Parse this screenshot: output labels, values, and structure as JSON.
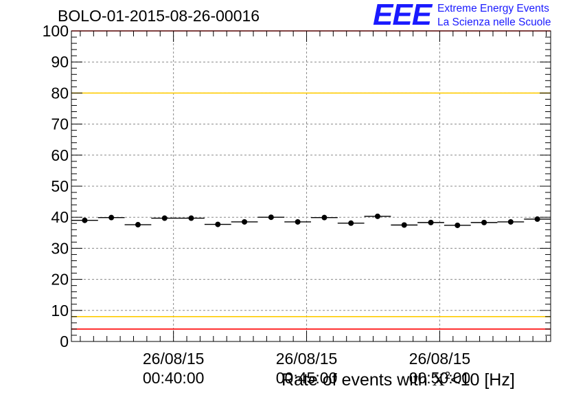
{
  "header": {
    "run_title": "BOLO-01-2015-08-26-00016",
    "logo_mark": "EEE",
    "logo_line1": "Extreme Energy Events",
    "logo_line2": "La Scienza nelle Scuole"
  },
  "chart_data": {
    "type": "scatter",
    "title": "BOLO-01-2015-08-26-00016",
    "xlabel_prefix": "Rate of events with ",
    "xlabel_symbol": "X",
    "xlabel_sup": "2",
    "xlabel_suffix": "<10 [Hz]",
    "ylabel": "",
    "x_axis_kind": "time",
    "x_range": [
      "2015-08-26 00:36:10",
      "2015-08-26 00:54:10"
    ],
    "ylim": [
      0,
      100
    ],
    "yticks": [
      0,
      10,
      20,
      30,
      40,
      50,
      60,
      70,
      80,
      90,
      100
    ],
    "xticks": [
      {
        "time": "2015-08-26 00:40:00",
        "date_label": "26/08/15",
        "time_label": "00:40:00"
      },
      {
        "time": "2015-08-26 00:45:00",
        "date_label": "26/08/15",
        "time_label": "00:45:00"
      },
      {
        "time": "2015-08-26 00:50:00",
        "date_label": "26/08/15",
        "time_label": "00:50:00"
      }
    ],
    "grid": true,
    "bin_width_seconds": 60,
    "series": [
      {
        "marker": "circle",
        "color": "#000000",
        "points": [
          {
            "x": "2015-08-26 00:36:40",
            "y": 39.0
          },
          {
            "x": "2015-08-26 00:37:40",
            "y": 39.9
          },
          {
            "x": "2015-08-26 00:38:40",
            "y": 37.6
          },
          {
            "x": "2015-08-26 00:39:40",
            "y": 39.7
          },
          {
            "x": "2015-08-26 00:40:40",
            "y": 39.7
          },
          {
            "x": "2015-08-26 00:41:40",
            "y": 37.7
          },
          {
            "x": "2015-08-26 00:42:40",
            "y": 38.5
          },
          {
            "x": "2015-08-26 00:43:40",
            "y": 40.0
          },
          {
            "x": "2015-08-26 00:44:40",
            "y": 38.5
          },
          {
            "x": "2015-08-26 00:45:40",
            "y": 39.9
          },
          {
            "x": "2015-08-26 00:46:40",
            "y": 38.1
          },
          {
            "x": "2015-08-26 00:47:40",
            "y": 40.3
          },
          {
            "x": "2015-08-26 00:48:40",
            "y": 37.5
          },
          {
            "x": "2015-08-26 00:49:40",
            "y": 38.3
          },
          {
            "x": "2015-08-26 00:50:40",
            "y": 37.4
          },
          {
            "x": "2015-08-26 00:51:40",
            "y": 38.3
          },
          {
            "x": "2015-08-26 00:52:40",
            "y": 38.5
          },
          {
            "x": "2015-08-26 00:53:40",
            "y": 39.4
          }
        ]
      }
    ],
    "reference_lines": [
      {
        "y": 100,
        "color": "#ff0000"
      },
      {
        "y": 80,
        "color": "#ffcc00"
      },
      {
        "y": 8,
        "color": "#ffcc00"
      },
      {
        "y": 4,
        "color": "#ff0000"
      }
    ]
  }
}
